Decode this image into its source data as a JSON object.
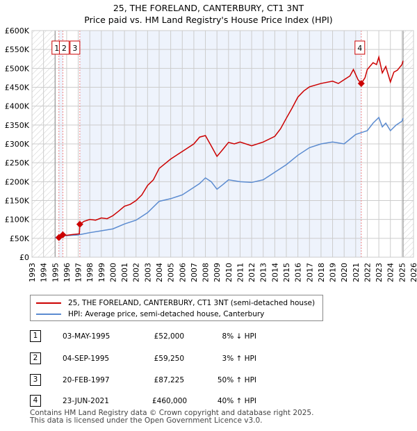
{
  "title": "25, THE FORELAND, CANTERBURY, CT1 3NT",
  "subtitle": "Price paid vs. HM Land Registry's House Price Index (HPI)",
  "chart_data": {
    "type": "line",
    "xlim": [
      1993,
      2026
    ],
    "ylim": [
      0,
      600000
    ],
    "x_ticks": [
      "1993",
      "1994",
      "1995",
      "1996",
      "1997",
      "1998",
      "1999",
      "2000",
      "2001",
      "2002",
      "2003",
      "2004",
      "2005",
      "2006",
      "2007",
      "2008",
      "2009",
      "2010",
      "2011",
      "2012",
      "2013",
      "2014",
      "2015",
      "2016",
      "2017",
      "2018",
      "2019",
      "2020",
      "2021",
      "2022",
      "2023",
      "2024",
      "2025",
      "2026"
    ],
    "y_ticks": [
      "£0",
      "£50K",
      "£100K",
      "£150K",
      "£200K",
      "£250K",
      "£300K",
      "£350K",
      "£400K",
      "£450K",
      "£500K",
      "£550K",
      "£600K"
    ],
    "series": [
      {
        "name": "25, THE FORELAND, CANTERBURY, CT1 3NT (semi-detached house)",
        "color": "#cc0000",
        "x": [
          1995.33,
          1995.67,
          1996,
          1996.5,
          1997.1,
          1997.14,
          1997.5,
          1998,
          1998.5,
          1999,
          1999.5,
          2000,
          2000.5,
          2001,
          2001.5,
          2002,
          2002.5,
          2003,
          2003.5,
          2004,
          2005,
          2006,
          2007,
          2007.5,
          2008,
          2008.5,
          2009,
          2009.5,
          2010,
          2010.5,
          2011,
          2012,
          2013,
          2014,
          2014.5,
          2015,
          2015.5,
          2016,
          2016.5,
          2017,
          2018,
          2019,
          2019.5,
          2020,
          2020.5,
          2020.8,
          2021.2,
          2021.48,
          2021.8,
          2022,
          2022.5,
          2022.8,
          2023,
          2023.3,
          2023.6,
          2024,
          2024.3,
          2024.6,
          2025,
          2025.1
        ],
        "values": [
          52000,
          59250,
          58000,
          60000,
          62000,
          87225,
          95000,
          100000,
          98000,
          104000,
          102000,
          110000,
          122000,
          135000,
          140000,
          150000,
          165000,
          190000,
          205000,
          235000,
          260000,
          280000,
          300000,
          318000,
          322000,
          295000,
          267000,
          285000,
          304000,
          300000,
          305000,
          295000,
          305000,
          320000,
          340000,
          368000,
          395000,
          424000,
          440000,
          451000,
          460000,
          466000,
          460000,
          470000,
          480000,
          497000,
          470000,
          460000,
          475000,
          497000,
          515000,
          510000,
          530000,
          488000,
          505000,
          464000,
          490000,
          495000,
          510000,
          520000
        ]
      },
      {
        "name": "HPI: Average price, semi-detached house, Canterbury",
        "color": "#5b8bd0",
        "x": [
          1995,
          1995.5,
          1996,
          1997,
          1998,
          1999,
          2000,
          2001,
          2002,
          2003,
          2004,
          2005,
          2006,
          2007,
          2007.5,
          2008,
          2008.5,
          2009,
          2009.5,
          2010,
          2011,
          2012,
          2013,
          2014,
          2015,
          2016,
          2017,
          2018,
          2019,
          2020,
          2020.8,
          2021,
          2021.5,
          2022,
          2022.5,
          2023,
          2023.3,
          2023.6,
          2024,
          2024.5,
          2025,
          2025.1
        ],
        "values": [
          52000,
          57000,
          57000,
          59000,
          65000,
          70000,
          75000,
          88000,
          98000,
          118000,
          148000,
          155000,
          165000,
          185000,
          195000,
          210000,
          200000,
          180000,
          192000,
          205000,
          200000,
          198000,
          205000,
          225000,
          245000,
          270000,
          290000,
          300000,
          305000,
          300000,
          320000,
          325000,
          330000,
          335000,
          355000,
          370000,
          345000,
          355000,
          335000,
          350000,
          360000,
          368000
        ]
      }
    ],
    "sales_markers": [
      {
        "label": "1",
        "x": 1995.33
      },
      {
        "label": "2",
        "x": 1995.67
      },
      {
        "label": "3",
        "x": 1997.14
      },
      {
        "label": "4",
        "x": 2021.48
      }
    ]
  },
  "legend": {
    "red": "25, THE FORELAND, CANTERBURY, CT1 3NT (semi-detached house)",
    "blue": "HPI: Average price, semi-detached house, Canterbury"
  },
  "table": [
    {
      "n": "1",
      "date": "03-MAY-1995",
      "price": "£52,000",
      "hpi": "8% ↓ HPI"
    },
    {
      "n": "2",
      "date": "04-SEP-1995",
      "price": "£59,250",
      "hpi": "3% ↑ HPI"
    },
    {
      "n": "3",
      "date": "20-FEB-1997",
      "price": "£87,225",
      "hpi": "50% ↑ HPI"
    },
    {
      "n": "4",
      "date": "23-JUN-2021",
      "price": "£460,000",
      "hpi": "40% ↑ HPI"
    }
  ],
  "footer": [
    "Contains HM Land Registry data © Crown copyright and database right 2025.",
    "This data is licensed under the Open Government Licence v3.0."
  ]
}
